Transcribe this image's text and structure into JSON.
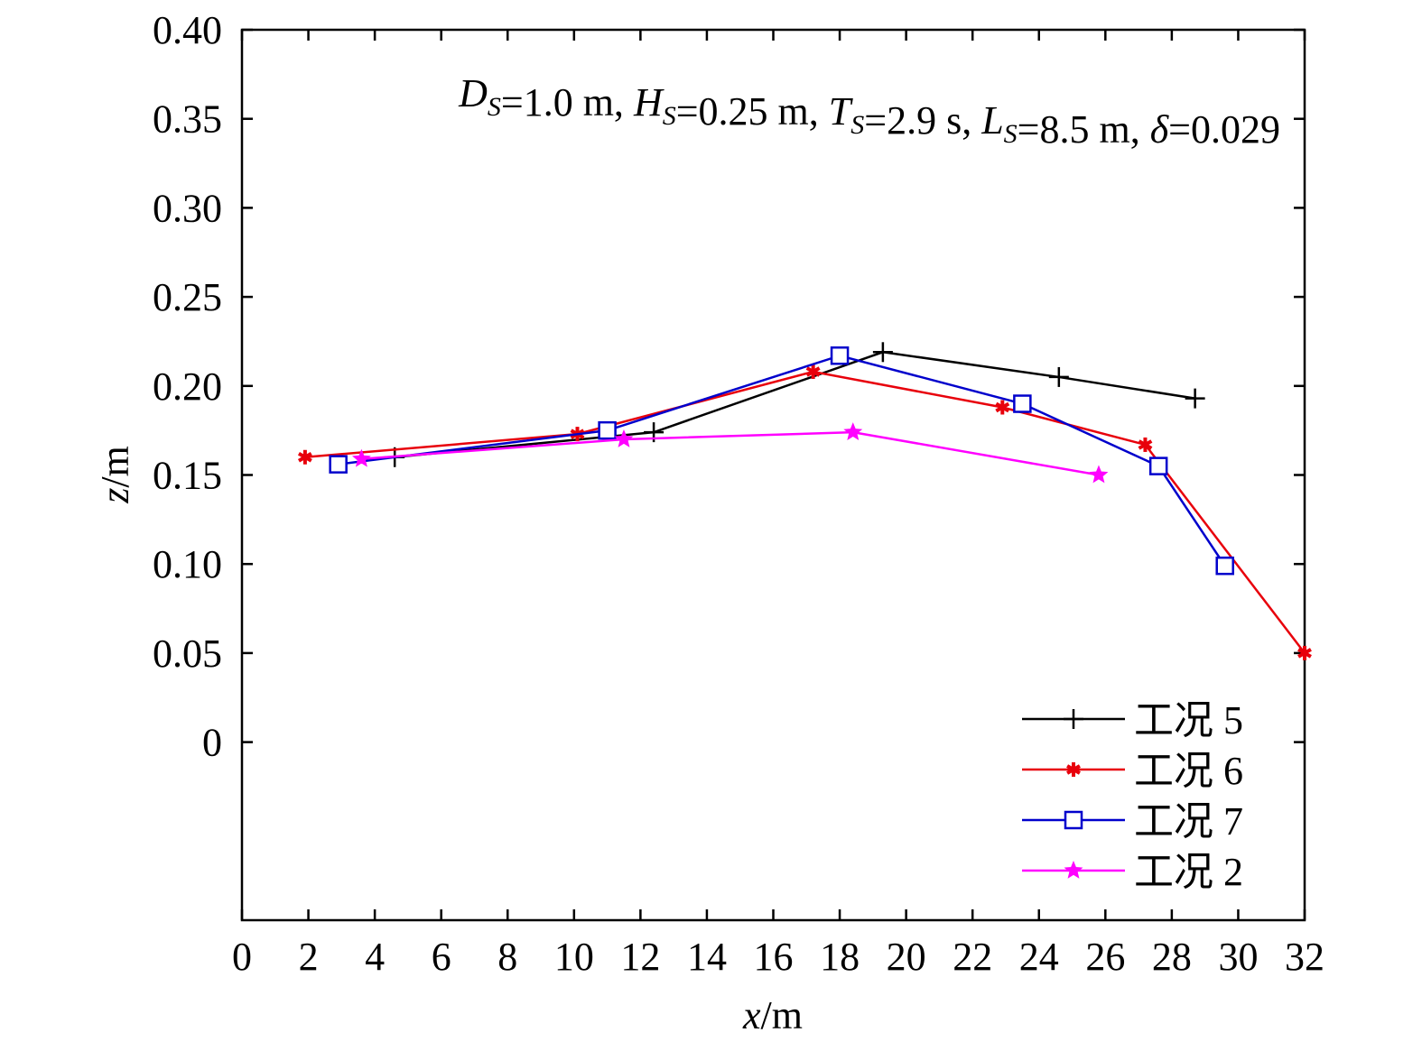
{
  "chart_data": {
    "type": "line",
    "title": "",
    "annotation": {
      "parts": [
        {
          "text": "D",
          "style": "italic"
        },
        {
          "text": "S",
          "style": "italic-sub"
        },
        {
          "text": "=1.0 m, ",
          "style": "normal"
        },
        {
          "text": "H",
          "style": "italic"
        },
        {
          "text": "S",
          "style": "italic-sub"
        },
        {
          "text": "=0.25 m, ",
          "style": "normal"
        },
        {
          "text": "T",
          "style": "italic"
        },
        {
          "text": "S",
          "style": "italic-sub"
        },
        {
          "text": "=2.9 s, ",
          "style": "normal"
        },
        {
          "text": "L",
          "style": "italic"
        },
        {
          "text": "S",
          "style": "italic-sub"
        },
        {
          "text": "=8.5 m, ",
          "style": "normal"
        },
        {
          "text": "δ",
          "style": "italic"
        },
        {
          "text": "=0.029",
          "style": "normal"
        }
      ]
    },
    "xlabel": {
      "var": "x",
      "unit": "/m"
    },
    "ylabel": {
      "var": "z",
      "unit": "/m"
    },
    "xlim": [
      0,
      32
    ],
    "ylim": [
      -0.1,
      0.4
    ],
    "x_ticks": [
      0,
      2,
      4,
      6,
      8,
      10,
      12,
      14,
      16,
      18,
      20,
      22,
      24,
      26,
      28,
      30,
      32
    ],
    "x_tick_labels": [
      "0",
      "2",
      "4",
      "6",
      "8",
      "10",
      "12",
      "14",
      "16",
      "18",
      "20",
      "22",
      "24",
      "26",
      "28",
      "30",
      "32"
    ],
    "y_ticks": [
      0,
      0.05,
      0.1,
      0.15,
      0.2,
      0.25,
      0.3,
      0.35,
      0.4
    ],
    "y_tick_labels": [
      "0",
      "0.05",
      "0.10",
      "0.15",
      "0.20",
      "0.25",
      "0.30",
      "0.35",
      "0.40"
    ],
    "grid": false,
    "legend_position": "bottom-right",
    "series": [
      {
        "name": "工况 5",
        "color": "#000000",
        "marker": "plus",
        "x": [
          4.6,
          12.4,
          19.3,
          24.6,
          28.7
        ],
        "y": [
          0.16,
          0.174,
          0.219,
          0.205,
          0.193
        ]
      },
      {
        "name": "工况 6",
        "color": "#e8000b",
        "marker": "asterisk",
        "x": [
          1.9,
          10.1,
          17.2,
          22.9,
          27.2,
          32.0
        ],
        "y": [
          0.16,
          0.173,
          0.208,
          0.188,
          0.167,
          0.05
        ]
      },
      {
        "name": "工况 7",
        "color": "#0000cc",
        "marker": "square",
        "x": [
          2.9,
          11.0,
          18.0,
          23.5,
          27.6,
          29.6
        ],
        "y": [
          0.156,
          0.175,
          0.217,
          0.19,
          0.155,
          0.099
        ]
      },
      {
        "name": "工况 2",
        "color": "#ff00ff",
        "marker": "star",
        "x": [
          3.6,
          11.5,
          18.4,
          25.8
        ],
        "y": [
          0.159,
          0.17,
          0.174,
          0.15
        ]
      }
    ]
  }
}
